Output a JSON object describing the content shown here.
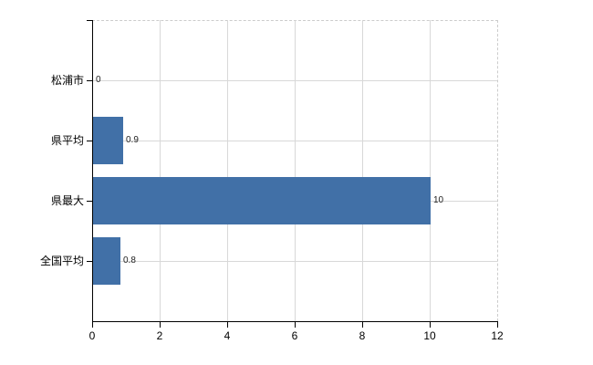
{
  "page": {
    "background_color": "#ffffff"
  },
  "chart_data": {
    "type": "bar",
    "orientation": "horizontal",
    "title": "",
    "xlabel": "",
    "ylabel": "",
    "categories": [
      "松浦市",
      "県平均",
      "県最大",
      "全国平均"
    ],
    "values": [
      0,
      0.9,
      10,
      0.8
    ],
    "data_labels": [
      "0",
      "0.9",
      "10",
      "0.8"
    ],
    "xlim": [
      0,
      12
    ],
    "x_ticks": [
      0,
      2,
      4,
      6,
      8,
      10,
      12
    ],
    "x_tick_labels": [
      "0",
      "2",
      "4",
      "6",
      "8",
      "10",
      "12"
    ],
    "grid": true,
    "legend": false,
    "colors": {
      "bar": "#4170a7",
      "axis": "#000000",
      "gridline": "#d8d8d8",
      "plot_border_dashed": "#cccccc",
      "category_text": "#000000",
      "tick_text": "#000000",
      "data_label_text": "#222222"
    }
  }
}
